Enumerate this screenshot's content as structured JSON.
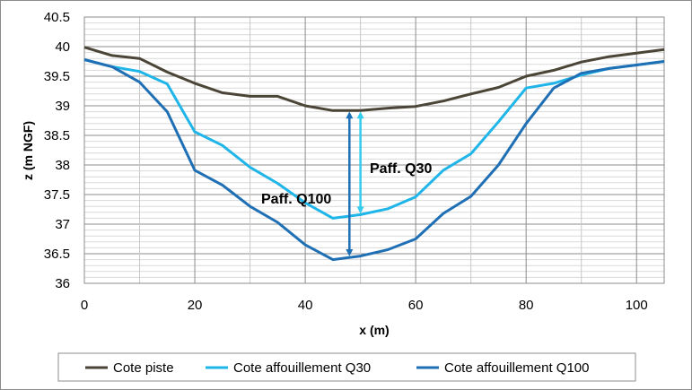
{
  "chart_data": {
    "type": "line",
    "xlabel": "x (m)",
    "ylabel": "z (m NGF)",
    "xlim": [
      0,
      105
    ],
    "ylim": [
      36,
      40.5
    ],
    "xticks": [
      0,
      20,
      40,
      60,
      80,
      100
    ],
    "yticks": [
      36,
      36.5,
      37,
      37.5,
      38,
      38.5,
      39,
      39.5,
      40,
      40.5
    ],
    "ytick_labels": [
      "36",
      "36.5",
      "37",
      "37.5",
      "38",
      "38.5",
      "39",
      "39.5",
      "40",
      "40.5"
    ],
    "grid": true,
    "legend_position": "bottom",
    "series": [
      {
        "name": "Cote piste",
        "color": "#4a4536",
        "points": [
          [
            0,
            39.99
          ],
          [
            5,
            39.85
          ],
          [
            10,
            39.8
          ],
          [
            15,
            39.57
          ],
          [
            20,
            39.38
          ],
          [
            25,
            39.22
          ],
          [
            30,
            39.16
          ],
          [
            35,
            39.16
          ],
          [
            40,
            39.0
          ],
          [
            45,
            38.92
          ],
          [
            50,
            38.92
          ],
          [
            55,
            38.96
          ],
          [
            60,
            38.99
          ],
          [
            65,
            39.08
          ],
          [
            70,
            39.2
          ],
          [
            75,
            39.31
          ],
          [
            80,
            39.5
          ],
          [
            85,
            39.6
          ],
          [
            90,
            39.74
          ],
          [
            95,
            39.83
          ],
          [
            100,
            39.89
          ],
          [
            105,
            39.95
          ]
        ]
      },
      {
        "name": "Cote affouillement Q30",
        "color": "#1fb5e8",
        "points": [
          [
            0,
            39.78
          ],
          [
            5,
            39.66
          ],
          [
            10,
            39.58
          ],
          [
            15,
            39.37
          ],
          [
            20,
            38.56
          ],
          [
            25,
            38.33
          ],
          [
            30,
            37.96
          ],
          [
            35,
            37.69
          ],
          [
            40,
            37.36
          ],
          [
            45,
            37.1
          ],
          [
            50,
            37.16
          ],
          [
            55,
            37.26
          ],
          [
            60,
            37.46
          ],
          [
            65,
            37.91
          ],
          [
            70,
            38.19
          ],
          [
            75,
            38.73
          ],
          [
            80,
            39.3
          ],
          [
            85,
            39.38
          ],
          [
            90,
            39.52
          ],
          [
            95,
            39.63
          ],
          [
            100,
            39.69
          ],
          [
            105,
            39.75
          ]
        ]
      },
      {
        "name": "Cote affouillement Q100",
        "color": "#1f6fb5",
        "points": [
          [
            0,
            39.78
          ],
          [
            5,
            39.66
          ],
          [
            10,
            39.4
          ],
          [
            15,
            38.9
          ],
          [
            20,
            37.91
          ],
          [
            25,
            37.66
          ],
          [
            30,
            37.3
          ],
          [
            35,
            37.03
          ],
          [
            40,
            36.65
          ],
          [
            45,
            36.4
          ],
          [
            50,
            36.46
          ],
          [
            55,
            36.57
          ],
          [
            60,
            36.75
          ],
          [
            65,
            37.18
          ],
          [
            70,
            37.47
          ],
          [
            75,
            38.0
          ],
          [
            80,
            38.7
          ],
          [
            85,
            39.3
          ],
          [
            90,
            39.55
          ],
          [
            95,
            39.63
          ],
          [
            100,
            39.69
          ],
          [
            105,
            39.75
          ]
        ]
      }
    ],
    "annotations": [
      {
        "label": "Paff. Q30",
        "arrow_x": 50,
        "from": 38.92,
        "to": 37.16,
        "color": "#33ccee"
      },
      {
        "label": "Paff. Q100",
        "arrow_x": 48,
        "from": 38.92,
        "to": 36.44,
        "color": "#1f6fb5"
      }
    ]
  }
}
